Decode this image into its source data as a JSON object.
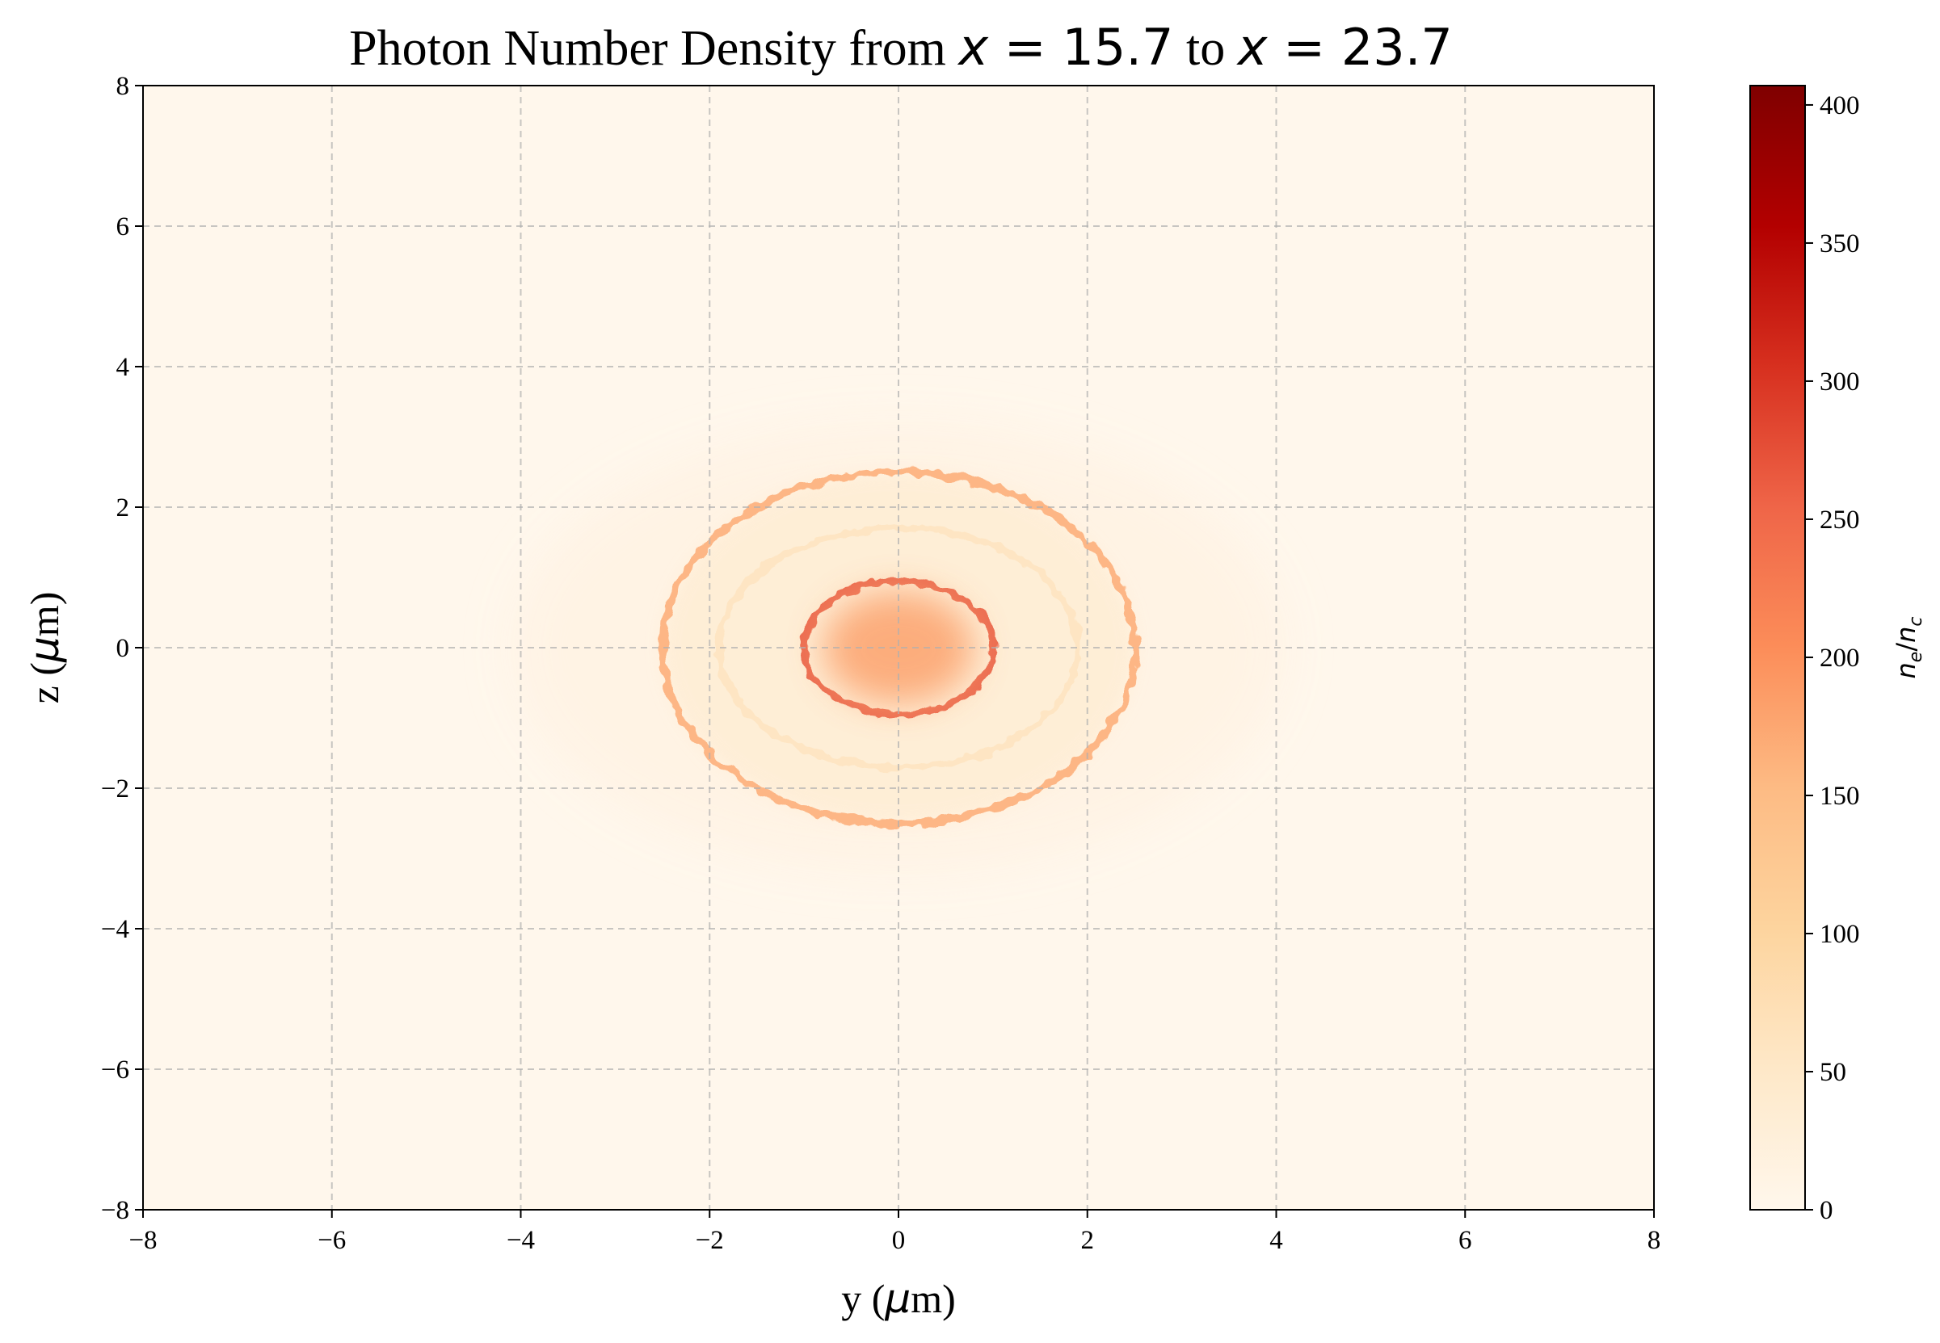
{
  "chart_data": {
    "type": "heatmap",
    "title": {
      "prefix": "Photon Number Density from ",
      "var1": "x",
      "eq1": " = 15.7",
      "middle": " to ",
      "var2": "x",
      "eq2": " = 23.7"
    },
    "xlabel": {
      "pre": "y (",
      "mu": "μ",
      "post": "m)"
    },
    "ylabel": {
      "pre": "z (",
      "mu": "μ",
      "post": "m)"
    },
    "xlim": [
      -8,
      8
    ],
    "ylim": [
      -8,
      8
    ],
    "xticks": [
      -8,
      -6,
      -4,
      -2,
      0,
      2,
      4,
      6,
      8
    ],
    "yticks": [
      -8,
      -6,
      -4,
      -2,
      0,
      2,
      4,
      6,
      8
    ],
    "xtick_labels": [
      "−8",
      "−6",
      "−4",
      "−2",
      "0",
      "2",
      "4",
      "6",
      "8"
    ],
    "ytick_labels": [
      "−8",
      "−6",
      "−4",
      "−2",
      "0",
      "2",
      "4",
      "6",
      "8"
    ],
    "grid": true,
    "colormap": "OrRd",
    "colorbar": {
      "label": {
        "n": "n",
        "e": "e",
        "slash": "/",
        "c": "c"
      },
      "range": [
        0,
        407
      ],
      "ticks": [
        0,
        50,
        100,
        150,
        200,
        250,
        300,
        350,
        400
      ],
      "tick_labels": [
        "0",
        "50",
        "100",
        "150",
        "200",
        "250",
        "300",
        "350",
        "400"
      ],
      "stops": [
        "#fff7ec",
        "#fee8c8",
        "#fdd49e",
        "#fdbb84",
        "#fc8d59",
        "#ef6548",
        "#d7301f",
        "#b30000",
        "#7f0000"
      ]
    },
    "features": [
      {
        "name": "outer faint halo",
        "shape": "ellipse",
        "center": [
          0,
          0
        ],
        "semi_axes": [
          4.1,
          3.2
        ],
        "level": 12
      },
      {
        "name": "outer ring edge",
        "shape": "ring",
        "center": [
          0,
          0
        ],
        "semi_axes": [
          2.5,
          2.5
        ],
        "level": 170
      },
      {
        "name": "intermediate ring",
        "shape": "ring",
        "center": [
          0,
          0
        ],
        "semi_axes": [
          1.9,
          1.7
        ],
        "level": 60
      },
      {
        "name": "inner ring",
        "shape": "ring",
        "center": [
          0,
          0
        ],
        "semi_axes": [
          1.0,
          0.95
        ],
        "level": 270
      },
      {
        "name": "core",
        "shape": "disk",
        "center": [
          0,
          0
        ],
        "semi_axes": [
          0.8,
          0.8
        ],
        "level": 180
      }
    ]
  }
}
